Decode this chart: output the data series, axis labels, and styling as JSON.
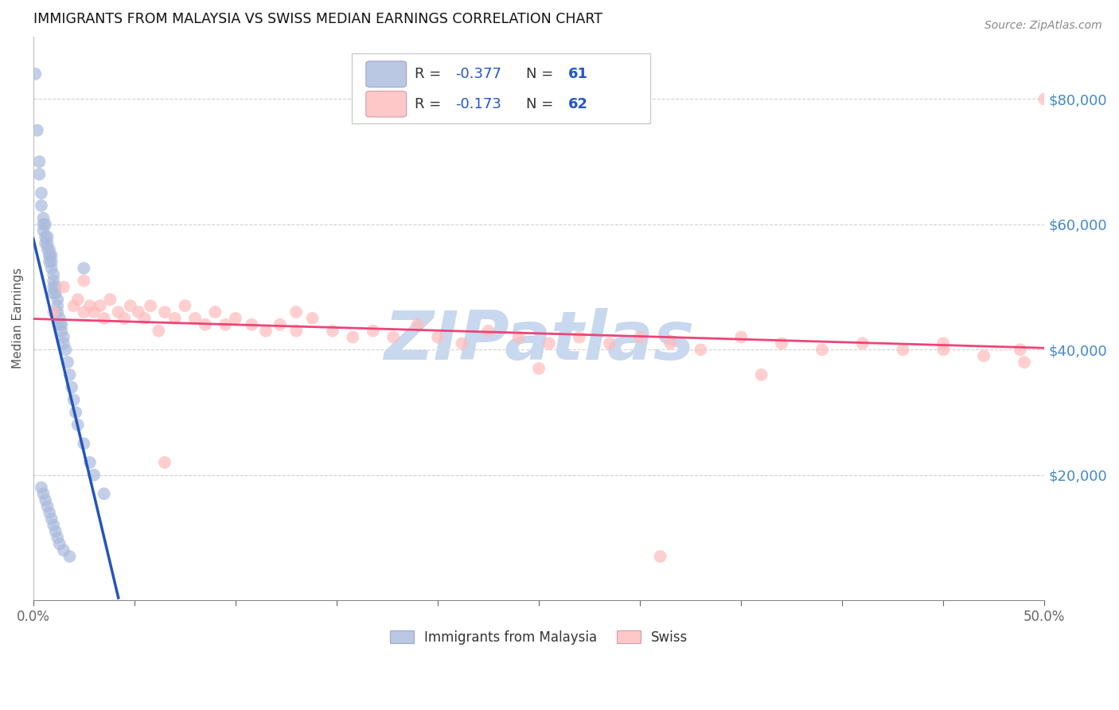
{
  "title": "IMMIGRANTS FROM MALAYSIA VS SWISS MEDIAN EARNINGS CORRELATION CHART",
  "source": "Source: ZipAtlas.com",
  "ylabel": "Median Earnings",
  "ytick_labels": [
    "$20,000",
    "$40,000",
    "$60,000",
    "$80,000"
  ],
  "ytick_values": [
    20000,
    40000,
    60000,
    80000
  ],
  "xmin": 0.0,
  "xmax": 0.5,
  "ymin": 0,
  "ymax": 90000,
  "legend_blue_r": "R = ",
  "legend_blue_r_val": "-0.377",
  "legend_blue_n": "N = ",
  "legend_blue_n_val": "61",
  "legend_pink_r": "R = ",
  "legend_pink_r_val": "-0.173",
  "legend_pink_n": "N = ",
  "legend_pink_n_val": "62",
  "legend_label_blue": "Immigrants from Malaysia",
  "legend_label_pink": "Swiss",
  "blue_color": "#aabbdd",
  "pink_color": "#ffbbbb",
  "blue_line_color": "#2255bb",
  "pink_line_color": "#ee4477",
  "watermark": "ZIPatlas",
  "watermark_color": "#c8d8ee",
  "xtick_positions": [
    0.0,
    0.05,
    0.1,
    0.15,
    0.2,
    0.25,
    0.3,
    0.35,
    0.4,
    0.45,
    0.5
  ],
  "blue_scatter_x": [
    0.001,
    0.002,
    0.003,
    0.003,
    0.004,
    0.004,
    0.005,
    0.005,
    0.005,
    0.006,
    0.006,
    0.006,
    0.007,
    0.007,
    0.007,
    0.008,
    0.008,
    0.008,
    0.008,
    0.009,
    0.009,
    0.009,
    0.01,
    0.01,
    0.01,
    0.01,
    0.011,
    0.011,
    0.012,
    0.012,
    0.012,
    0.013,
    0.013,
    0.014,
    0.014,
    0.015,
    0.015,
    0.016,
    0.017,
    0.018,
    0.019,
    0.02,
    0.021,
    0.022,
    0.025,
    0.028,
    0.03,
    0.035,
    0.004,
    0.005,
    0.006,
    0.007,
    0.008,
    0.009,
    0.01,
    0.011,
    0.012,
    0.013,
    0.015,
    0.018,
    0.025
  ],
  "blue_scatter_y": [
    84000,
    75000,
    70000,
    68000,
    65000,
    63000,
    61000,
    60000,
    59000,
    60000,
    58000,
    57000,
    58000,
    57000,
    56000,
    56000,
    55000,
    55000,
    54000,
    55000,
    54000,
    53000,
    52000,
    51000,
    50000,
    49000,
    50000,
    49000,
    48000,
    47000,
    46000,
    45000,
    44000,
    44000,
    43000,
    42000,
    41000,
    40000,
    38000,
    36000,
    34000,
    32000,
    30000,
    28000,
    25000,
    22000,
    20000,
    17000,
    18000,
    17000,
    16000,
    15000,
    14000,
    13000,
    12000,
    11000,
    10000,
    9000,
    8000,
    7000,
    53000
  ],
  "pink_scatter_x": [
    0.01,
    0.015,
    0.02,
    0.022,
    0.025,
    0.028,
    0.03,
    0.033,
    0.035,
    0.038,
    0.042,
    0.045,
    0.048,
    0.052,
    0.055,
    0.058,
    0.062,
    0.065,
    0.07,
    0.075,
    0.08,
    0.085,
    0.09,
    0.095,
    0.1,
    0.108,
    0.115,
    0.122,
    0.13,
    0.138,
    0.148,
    0.158,
    0.168,
    0.178,
    0.19,
    0.2,
    0.212,
    0.225,
    0.24,
    0.255,
    0.27,
    0.285,
    0.3,
    0.315,
    0.33,
    0.35,
    0.37,
    0.39,
    0.41,
    0.43,
    0.45,
    0.47,
    0.488,
    0.025,
    0.065,
    0.13,
    0.25,
    0.36,
    0.45,
    0.49,
    0.5,
    0.31
  ],
  "pink_scatter_y": [
    46000,
    50000,
    47000,
    48000,
    46000,
    47000,
    46000,
    47000,
    45000,
    48000,
    46000,
    45000,
    47000,
    46000,
    45000,
    47000,
    43000,
    46000,
    45000,
    47000,
    45000,
    44000,
    46000,
    44000,
    45000,
    44000,
    43000,
    44000,
    43000,
    45000,
    43000,
    42000,
    43000,
    42000,
    44000,
    42000,
    41000,
    43000,
    42000,
    41000,
    42000,
    41000,
    42000,
    41000,
    40000,
    42000,
    41000,
    40000,
    41000,
    40000,
    41000,
    39000,
    40000,
    51000,
    22000,
    46000,
    37000,
    36000,
    40000,
    38000,
    80000,
    7000
  ]
}
